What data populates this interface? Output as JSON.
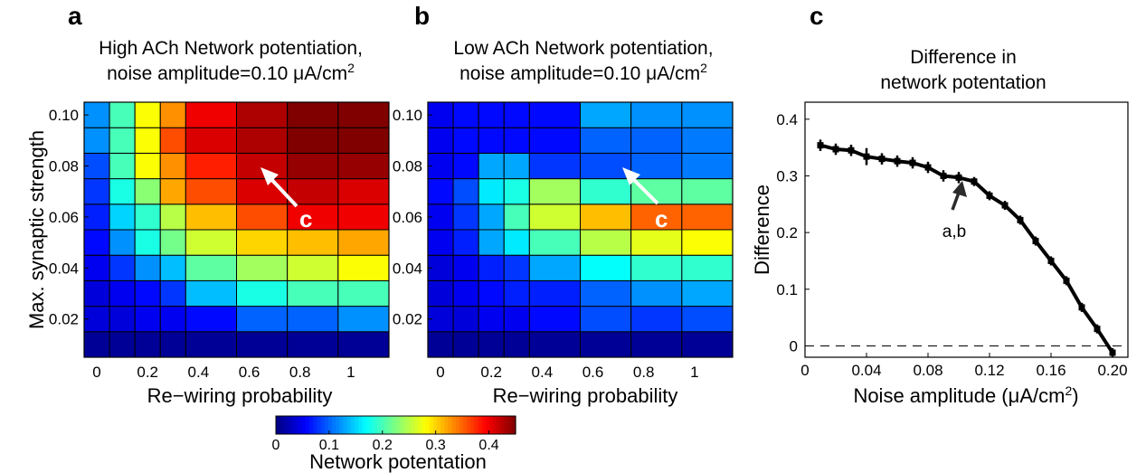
{
  "colors": {
    "line": "#000000",
    "arrow_heatmap": "#ffffff",
    "arrow_line": "#2b2b2b",
    "colormap": "jet"
  },
  "colorbar": {
    "min": 0,
    "max": 0.45,
    "ticks": [
      "0",
      "0.1",
      "0.2",
      "0.3",
      "0.4"
    ],
    "label": "Network potentation"
  },
  "chart_data": [
    {
      "type": "heatmap",
      "panel_letter": "a",
      "title_line1": "High ACh Network potentiation,",
      "title_line2_prefix": "noise amplitude=0.10 ",
      "title_line2_mu": "μ",
      "title_line2_unit": "A/cm",
      "title_line2_sup": "2",
      "xlabel": "Re−wiring probability",
      "ylabel": "Max. synaptic strength",
      "x_ticks": [
        "0",
        "0.2",
        "0.4",
        "0.6",
        "0.8",
        "1"
      ],
      "y_ticks": [
        "0.02",
        "0.04",
        "0.06",
        "0.08",
        "0.10"
      ],
      "x_values": [
        0,
        0.1,
        0.2,
        0.3,
        0.5,
        0.7,
        0.9,
        1
      ],
      "y_values": [
        0.01,
        0.02,
        0.03,
        0.04,
        0.05,
        0.06,
        0.07,
        0.08,
        0.09,
        0.1
      ],
      "col_ranges": [
        [
          -0.05,
          0.05
        ],
        [
          0.05,
          0.15
        ],
        [
          0.15,
          0.25
        ],
        [
          0.25,
          0.35
        ],
        [
          0.35,
          0.55
        ],
        [
          0.55,
          0.75
        ],
        [
          0.75,
          0.95
        ],
        [
          0.95,
          1.15
        ]
      ],
      "xlim": [
        -0.05,
        1.15
      ],
      "ylim": [
        0.005,
        0.105
      ],
      "values": [
        [
          0.01,
          0.01,
          0.01,
          0.01,
          0.01,
          0.01,
          0.01,
          0.01
        ],
        [
          0.04,
          0.04,
          0.05,
          0.05,
          0.06,
          0.1,
          0.1,
          0.12
        ],
        [
          0.04,
          0.05,
          0.06,
          0.08,
          0.14,
          0.18,
          0.2,
          0.2
        ],
        [
          0.05,
          0.08,
          0.12,
          0.14,
          0.21,
          0.24,
          0.26,
          0.28
        ],
        [
          0.06,
          0.12,
          0.18,
          0.22,
          0.26,
          0.3,
          0.31,
          0.32
        ],
        [
          0.07,
          0.15,
          0.19,
          0.25,
          0.31,
          0.36,
          0.4,
          0.4
        ],
        [
          0.08,
          0.18,
          0.23,
          0.32,
          0.36,
          0.41,
          0.42,
          0.41
        ],
        [
          0.09,
          0.2,
          0.28,
          0.33,
          0.38,
          0.42,
          0.44,
          0.44
        ],
        [
          0.12,
          0.2,
          0.28,
          0.36,
          0.41,
          0.43,
          0.45,
          0.45
        ],
        [
          0.12,
          0.2,
          0.28,
          0.33,
          0.4,
          0.43,
          0.45,
          0.45
        ]
      ],
      "annotation": "c"
    },
    {
      "type": "heatmap",
      "panel_letter": "b",
      "title_line1": "Low ACh Network potentiation,",
      "title_line2_prefix": "noise amplitude=0.10 ",
      "title_line2_mu": "μ",
      "title_line2_unit": "A/cm",
      "title_line2_sup": "2",
      "xlabel": "Re−wiring probability",
      "x_ticks": [
        "0",
        "0.2",
        "0.4",
        "0.6",
        "0.8",
        "1"
      ],
      "y_ticks": [
        "0.02",
        "0.04",
        "0.06",
        "0.08",
        "0.10"
      ],
      "x_values": [
        0,
        0.1,
        0.2,
        0.3,
        0.5,
        0.7,
        0.9,
        1
      ],
      "y_values": [
        0.01,
        0.02,
        0.03,
        0.04,
        0.05,
        0.06,
        0.07,
        0.08,
        0.09,
        0.1
      ],
      "col_ranges": [
        [
          -0.05,
          0.05
        ],
        [
          0.05,
          0.15
        ],
        [
          0.15,
          0.25
        ],
        [
          0.25,
          0.35
        ],
        [
          0.35,
          0.55
        ],
        [
          0.55,
          0.75
        ],
        [
          0.75,
          0.95
        ],
        [
          0.95,
          1.15
        ]
      ],
      "xlim": [
        -0.05,
        1.15
      ],
      "ylim": [
        0.005,
        0.105
      ],
      "values": [
        [
          0.01,
          0.01,
          0.01,
          0.01,
          0.01,
          0.01,
          0.01,
          0.01
        ],
        [
          0.04,
          0.04,
          0.05,
          0.05,
          0.06,
          0.09,
          0.08,
          0.09
        ],
        [
          0.04,
          0.05,
          0.06,
          0.07,
          0.07,
          0.1,
          0.12,
          0.13
        ],
        [
          0.04,
          0.05,
          0.07,
          0.08,
          0.13,
          0.17,
          0.19,
          0.19
        ],
        [
          0.05,
          0.07,
          0.13,
          0.16,
          0.2,
          0.25,
          0.27,
          0.28
        ],
        [
          0.05,
          0.08,
          0.13,
          0.2,
          0.26,
          0.31,
          0.35,
          0.35
        ],
        [
          0.06,
          0.09,
          0.16,
          0.18,
          0.24,
          0.19,
          0.21,
          0.21
        ],
        [
          0.05,
          0.06,
          0.13,
          0.13,
          0.08,
          0.09,
          0.1,
          0.11
        ],
        [
          0.05,
          0.06,
          0.06,
          0.06,
          0.06,
          0.1,
          0.1,
          0.11
        ],
        [
          0.05,
          0.06,
          0.06,
          0.06,
          0.06,
          0.13,
          0.12,
          0.12
        ]
      ],
      "annotation": "c"
    },
    {
      "type": "line",
      "panel_letter": "c",
      "title_line1": "Difference in",
      "title_line2": "network potentation",
      "xlabel_prefix": "Noise amplitude (",
      "xlabel_mu": "μ",
      "xlabel_unit": "A/cm",
      "xlabel_sup": "2",
      "xlabel_suffix": ")",
      "ylabel": "Difference",
      "x_ticks": [
        "0",
        "0.04",
        "0.08",
        "0.12",
        "0.16",
        "0.20"
      ],
      "y_ticks": [
        "0",
        "0.1",
        "0.2",
        "0.3",
        "0.4"
      ],
      "xlim": [
        0,
        0.21
      ],
      "ylim": [
        -0.02,
        0.43
      ],
      "x": [
        0.01,
        0.02,
        0.03,
        0.04,
        0.05,
        0.06,
        0.07,
        0.08,
        0.09,
        0.1,
        0.11,
        0.12,
        0.13,
        0.14,
        0.15,
        0.16,
        0.17,
        0.18,
        0.19,
        0.2
      ],
      "y": [
        0.354,
        0.347,
        0.345,
        0.334,
        0.33,
        0.326,
        0.323,
        0.315,
        0.3,
        0.297,
        0.29,
        0.265,
        0.248,
        0.222,
        0.185,
        0.15,
        0.115,
        0.068,
        0.03,
        -0.012
      ],
      "err": [
        0.01,
        0.01,
        0.01,
        0.015,
        0.01,
        0.01,
        0.01,
        0.01,
        0.01,
        0.01,
        0.008,
        0.008,
        0.008,
        0.008,
        0.008,
        0.008,
        0.008,
        0.008,
        0.008,
        0.008
      ],
      "reference_line_y": 0,
      "annotation": "a,b",
      "annotation_x": 0.1
    }
  ]
}
